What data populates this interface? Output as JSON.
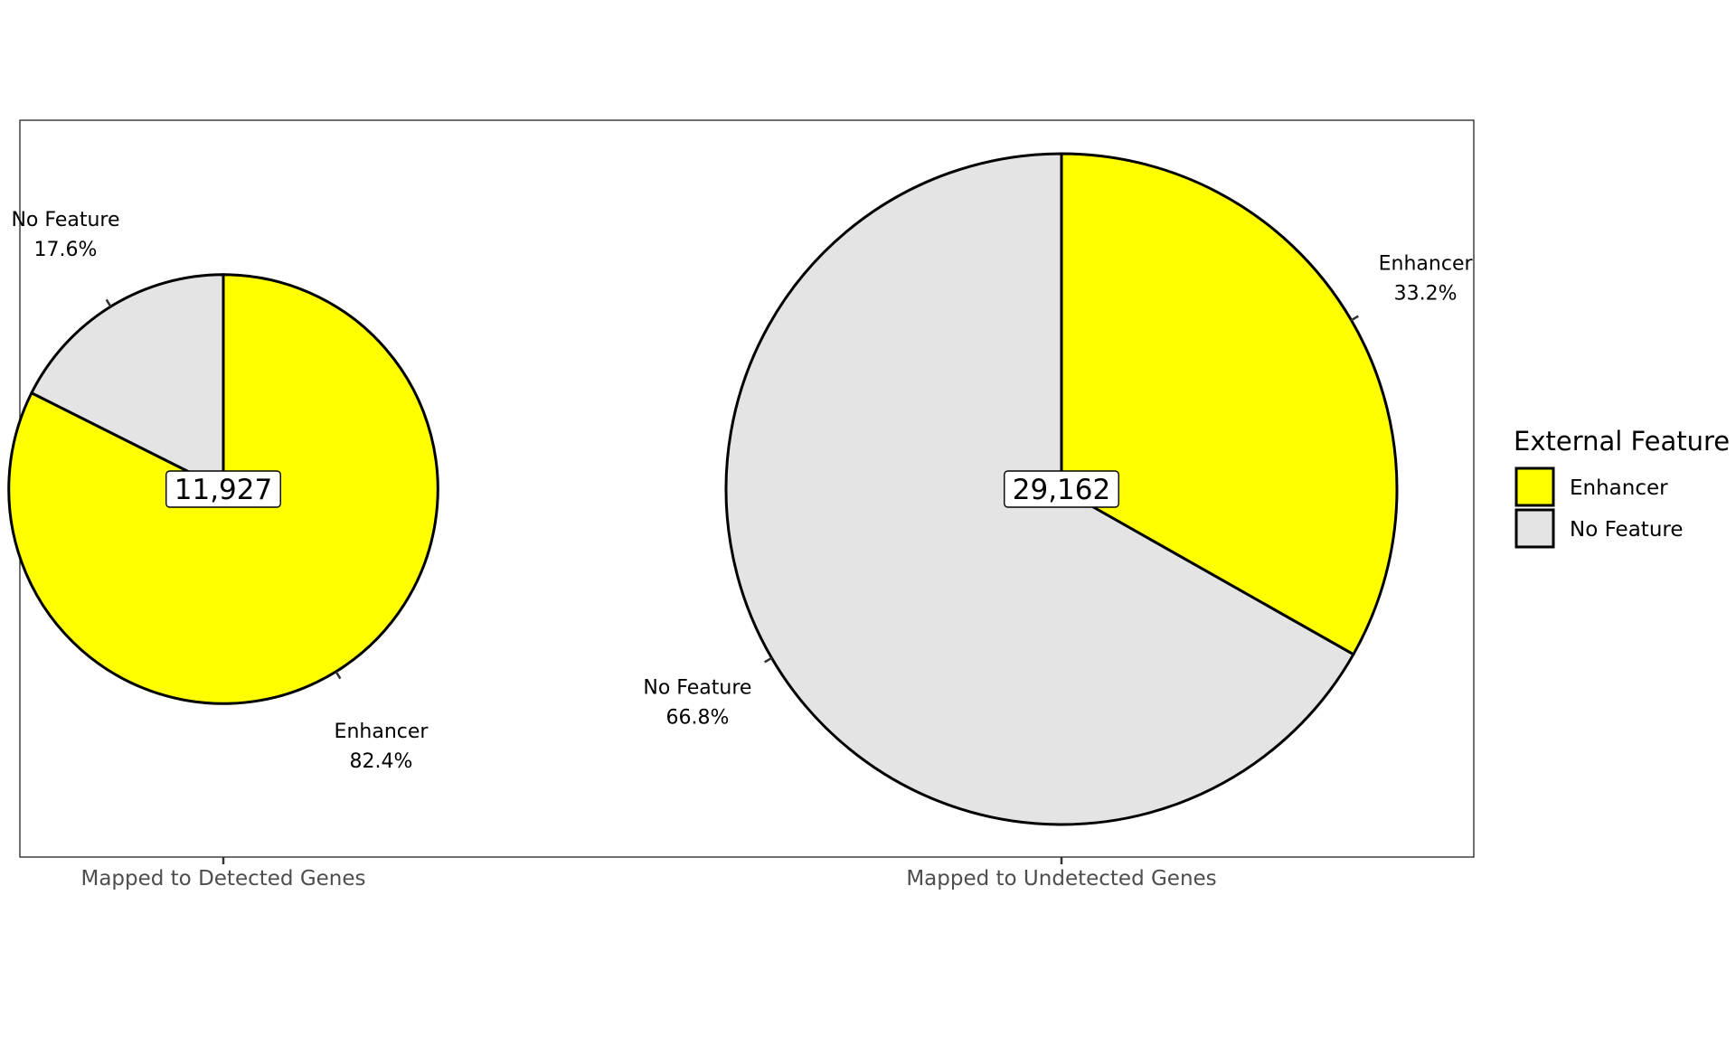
{
  "chart_data": {
    "type": "pie",
    "title": "",
    "legend": {
      "title": "External Feature",
      "placement": "right",
      "entries": [
        {
          "label": "Enhancer",
          "color": "#FFFF00"
        },
        {
          "label": "No Feature",
          "color": "#E4E4E4"
        }
      ]
    },
    "pies": [
      {
        "category": "Mapped to Detected Genes",
        "total": 11927,
        "total_label": "11,927",
        "slices": [
          {
            "name": "Enhancer",
            "percent": 82.4,
            "pct_label": "82.4%"
          },
          {
            "name": "No Feature",
            "percent": 17.6,
            "pct_label": "17.6%"
          }
        ]
      },
      {
        "category": "Mapped to Undetected Genes",
        "total": 29162,
        "total_label": "29,162",
        "slices": [
          {
            "name": "Enhancer",
            "percent": 33.2,
            "pct_label": "33.2%"
          },
          {
            "name": "No Feature",
            "percent": 66.8,
            "pct_label": "66.8%"
          }
        ]
      }
    ]
  }
}
